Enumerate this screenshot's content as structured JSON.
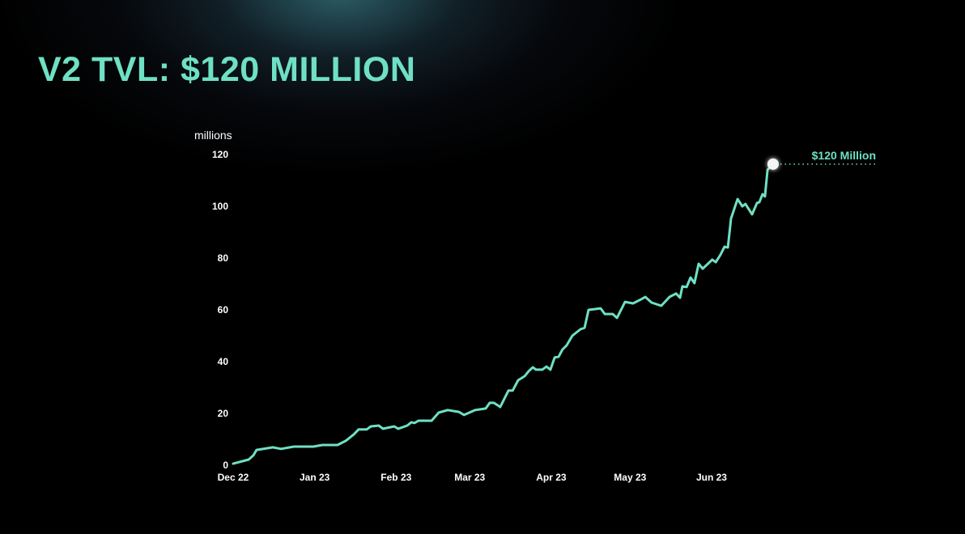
{
  "title": "V2 TVL: $120 MILLION",
  "chart_data": {
    "type": "line",
    "title": "V2 TVL: $120 MILLION",
    "ylabel": "millions",
    "xlabel": "",
    "ylim": [
      0,
      120
    ],
    "yticks": [
      0,
      20,
      40,
      60,
      80,
      100,
      120
    ],
    "x_unit": "days since Dec 1 2022",
    "xticks": [
      {
        "day": 0,
        "label": "Dec 22"
      },
      {
        "day": 31,
        "label": "Jan 23"
      },
      {
        "day": 62,
        "label": "Feb 23"
      },
      {
        "day": 90,
        "label": "Mar 23"
      },
      {
        "day": 121,
        "label": "Apr 23"
      },
      {
        "day": 151,
        "label": "May 23"
      },
      {
        "day": 182,
        "label": "Jun 23"
      }
    ],
    "grid": false,
    "color": "#6fe0c4",
    "annotation": {
      "label": "$120 Million",
      "value": 120
    },
    "series": [
      {
        "name": "TVL",
        "x": [
          0,
          5.9,
          7.7,
          8.9,
          15.1,
          18.2,
          23.1,
          30.5,
          33.9,
          39.7,
          42.8,
          45.9,
          47.7,
          50.8,
          52.4,
          55.4,
          57.0,
          61.3,
          62.8,
          66.2,
          67.8,
          69.0,
          70.5,
          75.5,
          78.2,
          81.6,
          85.9,
          87.8,
          92.1,
          96.1,
          97.6,
          99.2,
          101.6,
          104.7,
          106.3,
          108.4,
          110.9,
          112.4,
          114.0,
          115.2,
          117.6,
          119.2,
          120.7,
          122.3,
          123.8,
          125.3,
          126.9,
          129.0,
          132.1,
          133.7,
          135.2,
          139.8,
          141.4,
          144.4,
          146.0,
          149.1,
          152.1,
          155.2,
          156.8,
          159.2,
          162.9,
          166.0,
          168.5,
          170.0,
          170.9,
          172.5,
          174.0,
          175.5,
          177.1,
          178.6,
          182.3,
          183.6,
          185.4,
          186.9,
          188.2,
          189.4,
          191.9,
          193.7,
          194.9,
          197.4,
          199.3,
          200.2,
          201.4,
          202.3,
          203.3,
          205.1
        ],
        "values": [
          0.6,
          2.2,
          3.8,
          5.9,
          6.9,
          6.3,
          7.2,
          7.2,
          7.8,
          7.8,
          9.4,
          11.9,
          13.8,
          13.8,
          15.0,
          15.3,
          14.1,
          15.0,
          14.1,
          15.3,
          16.6,
          16.3,
          17.2,
          17.2,
          20.3,
          21.3,
          20.6,
          19.4,
          21.3,
          21.9,
          24.1,
          24.1,
          22.5,
          28.8,
          28.8,
          32.8,
          34.4,
          36.3,
          37.8,
          36.9,
          36.9,
          38.1,
          36.9,
          41.6,
          41.9,
          44.7,
          46.3,
          50.0,
          52.5,
          53.1,
          60.0,
          60.6,
          58.4,
          58.4,
          56.9,
          63.1,
          62.5,
          64.1,
          65.0,
          62.8,
          61.6,
          65.0,
          66.3,
          64.7,
          69.1,
          68.8,
          72.5,
          70.3,
          77.8,
          75.9,
          79.4,
          78.4,
          81.3,
          84.4,
          84.1,
          95.3,
          102.8,
          100.0,
          100.9,
          96.9,
          101.3,
          101.6,
          104.7,
          103.8,
          114.1,
          116.3
        ]
      }
    ]
  }
}
